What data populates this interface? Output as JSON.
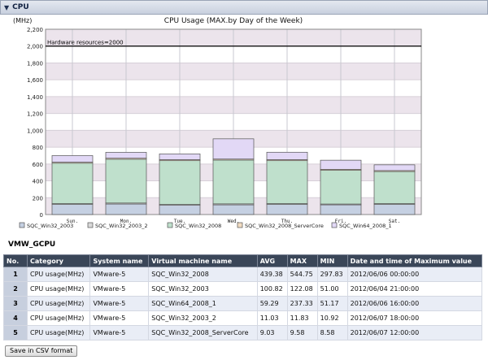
{
  "panel": {
    "toggle_glyph": "▼",
    "title": "CPU"
  },
  "chart_data": {
    "type": "bar",
    "title": "CPU Usage (MAX.by Day of the Week)",
    "ylabel": "(MHz)",
    "xlabel": "",
    "ylim": [
      0,
      2200
    ],
    "yticks": [
      "0",
      "200",
      "400",
      "600",
      "800",
      "1,000",
      "1,200",
      "1,400",
      "1,600",
      "1,800",
      "2,000",
      "2,200"
    ],
    "grid": true,
    "stacked": true,
    "categories": [
      "Sun.",
      "Mon.",
      "Tue.",
      "Wed.",
      "Thu.",
      "Fri.",
      "Sat."
    ],
    "series": [
      {
        "name": "SQC_Win32_2003",
        "color": "#c5d0e2",
        "values": [
          120,
          125,
          110,
          115,
          120,
          115,
          120
        ]
      },
      {
        "name": "SQC_Win32_2003_2",
        "color": "#d8d8d8",
        "values": [
          10,
          12,
          10,
          12,
          10,
          10,
          10
        ]
      },
      {
        "name": "SQC_Win32_2008",
        "color": "#bfe0cc",
        "values": [
          480,
          520,
          520,
          520,
          510,
          400,
          380
        ]
      },
      {
        "name": "SQC_Win32_2008_ServerCore",
        "color": "#f2dcc2",
        "values": [
          12,
          12,
          12,
          12,
          12,
          12,
          12
        ]
      },
      {
        "name": "SQC_Win64_2008_1",
        "color": "#e2d8f6",
        "values": [
          78,
          70,
          68,
          240,
          88,
          108,
          68
        ]
      }
    ],
    "reference_line": {
      "label": "Hardware resources=2000",
      "value": 2000
    },
    "legend_position": "bottom"
  },
  "table": {
    "title": "VMW_GCPU",
    "columns": [
      "No.",
      "Category",
      "System name",
      "Virtual machine name",
      "AVG",
      "MAX",
      "MIN",
      "Date and time of Maximum value"
    ],
    "rows": [
      [
        "1",
        "CPU usage(MHz)",
        "VMware-5",
        "SQC_Win32_2008",
        "439.38",
        "544.75",
        "297.83",
        "2012/06/06 00:00:00"
      ],
      [
        "2",
        "CPU usage(MHz)",
        "VMware-5",
        "SQC_Win32_2003",
        "100.82",
        "122.08",
        "51.00",
        "2012/06/04 21:00:00"
      ],
      [
        "3",
        "CPU usage(MHz)",
        "VMware-5",
        "SQC_Win64_2008_1",
        "59.29",
        "237.33",
        "51.17",
        "2012/06/06 16:00:00"
      ],
      [
        "4",
        "CPU usage(MHz)",
        "VMware-5",
        "SQC_Win32_2003_2",
        "11.03",
        "11.83",
        "10.92",
        "2012/06/07 18:00:00"
      ],
      [
        "5",
        "CPU usage(MHz)",
        "VMware-5",
        "SQC_Win32_2008_ServerCore",
        "9.03",
        "9.58",
        "8.58",
        "2012/06/07 12:00:00"
      ]
    ]
  },
  "csv_button": {
    "label": "Save in CSV format"
  }
}
